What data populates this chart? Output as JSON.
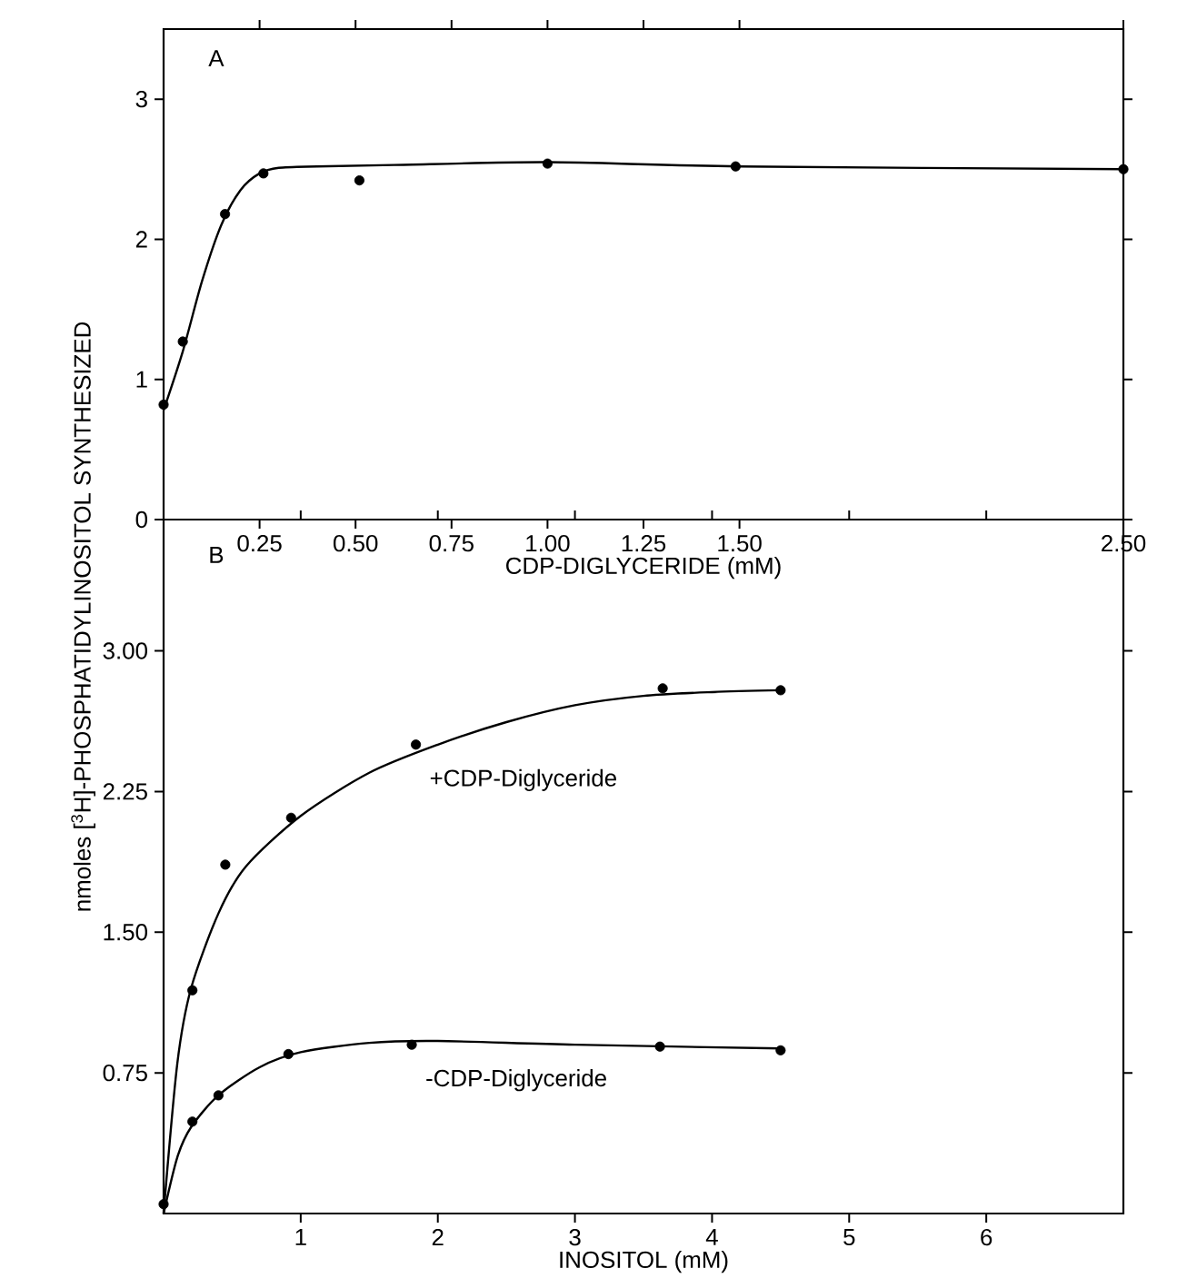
{
  "chart_data": [
    {
      "type": "scatter",
      "xlabel": "CDP-DIGLYCERIDE (mM)",
      "annotations": [
        "A"
      ],
      "marker": "circle",
      "xlim": [
        0,
        2.5
      ],
      "ylim": [
        0,
        3.5
      ],
      "xticks": [
        {
          "value": 0.25,
          "label": "0.25"
        },
        {
          "value": 0.5,
          "label": "0.50"
        },
        {
          "value": 0.75,
          "label": "0.75"
        },
        {
          "value": 1,
          "label": "1.00"
        },
        {
          "value": 1.25,
          "label": "1.25"
        },
        {
          "value": 1.5,
          "label": "1.50"
        },
        {
          "value": 2.5,
          "label": "2.50"
        }
      ],
      "yticks": [
        0,
        1,
        2,
        3
      ],
      "series": [
        {
          "type": "line",
          "marker": "none",
          "color": "#000000",
          "x": [
            0,
            0.05,
            0.1,
            0.15,
            0.2,
            0.25,
            0.3,
            0.4,
            0.6,
            1.0,
            1.5,
            2.5
          ],
          "values": [
            0.78,
            1.2,
            1.7,
            2.1,
            2.35,
            2.47,
            2.51,
            2.52,
            2.53,
            2.55,
            2.52,
            2.5
          ]
        },
        {
          "color": "#000000",
          "x": [
            0,
            0.05,
            0.16,
            0.26,
            0.51,
            1.0,
            1.49,
            2.5
          ],
          "values": [
            0.82,
            1.27,
            2.18,
            2.47,
            2.42,
            2.54,
            2.52,
            2.5
          ]
        }
      ]
    },
    {
      "type": "scatter",
      "xlabel": "INOSITOL (mM)",
      "ylabel": "nmoles [$^{3}$H]-PHOSPHATIDYLINOSITOL SYNTHESIZED",
      "annotations": [
        "B"
      ],
      "marker": "circle",
      "xlim": [
        0,
        7
      ],
      "ylim": [
        0,
        3.7
      ],
      "xticks": [
        1,
        2,
        3,
        4,
        5,
        6
      ],
      "yticks": [
        {
          "value": 0.75,
          "label": "0.75"
        },
        {
          "value": 1.5,
          "label": "1.50"
        },
        {
          "value": 2.25,
          "label": "2.25"
        },
        {
          "value": 3,
          "label": "3.00"
        }
      ],
      "series": [
        {
          "type": "line",
          "marker": "none",
          "color": "#000000",
          "x": [
            0,
            0.1,
            0.2,
            0.4,
            0.6,
            1,
            1.5,
            2,
            2.5,
            3,
            3.5,
            4,
            4.5
          ],
          "values": [
            0,
            0.8,
            1.2,
            1.6,
            1.85,
            2.12,
            2.35,
            2.5,
            2.62,
            2.71,
            2.76,
            2.78,
            2.79
          ]
        },
        {
          "name": "+CDP-Diglyceride",
          "color": "#000000",
          "x": [
            0.21,
            0.45,
            0.93,
            1.84,
            3.64,
            4.5
          ],
          "values": [
            1.19,
            1.86,
            2.11,
            2.5,
            2.8,
            2.79
          ]
        },
        {
          "type": "line",
          "marker": "none",
          "color": "#000000",
          "x": [
            0,
            0.1,
            0.2,
            0.4,
            0.7,
            1,
            1.5,
            2,
            3,
            4.5
          ],
          "values": [
            0,
            0.3,
            0.46,
            0.63,
            0.78,
            0.86,
            0.91,
            0.92,
            0.9,
            0.88
          ]
        },
        {
          "name": "-CDP-Diglyceride",
          "color": "#000000",
          "x": [
            0,
            0.21,
            0.4,
            0.91,
            1.81,
            3.62,
            4.5
          ],
          "values": [
            0.05,
            0.49,
            0.63,
            0.85,
            0.9,
            0.89,
            0.87
          ]
        }
      ]
    }
  ]
}
